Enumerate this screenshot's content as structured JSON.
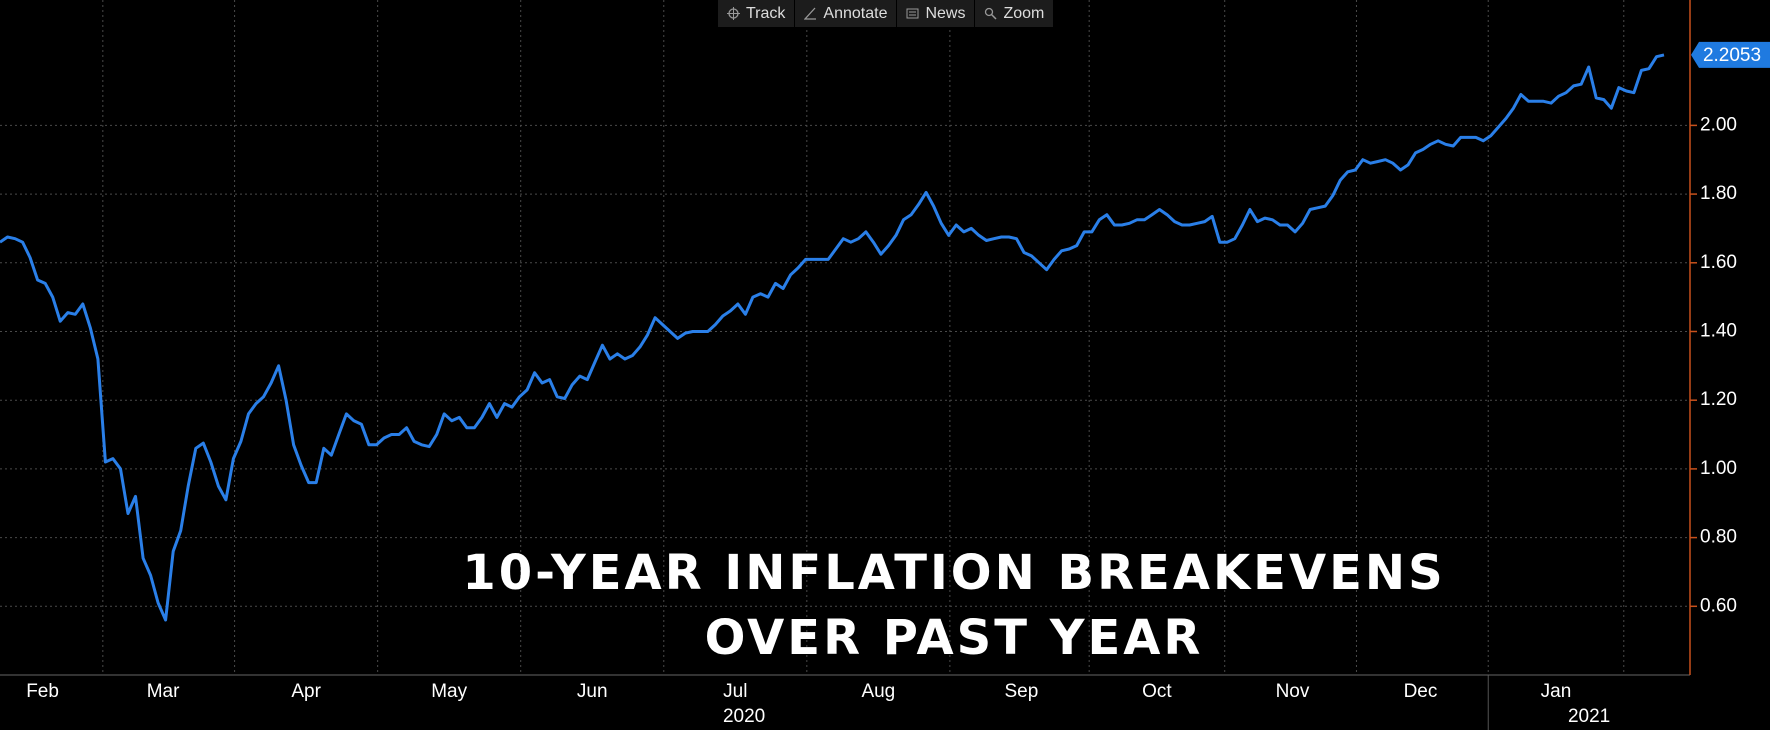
{
  "toolbar": [
    "Track",
    "Annotate",
    "News",
    "Zoom"
  ],
  "chart_data": {
    "type": "line",
    "title": [
      "10-YEAR INFLATION BREAKEVENS",
      "OVER PAST YEAR"
    ],
    "color": "#2a7fe8",
    "categories": [
      null,
      null,
      null,
      "Feb",
      null,
      null,
      null,
      null,
      null,
      null,
      null,
      null,
      null,
      null,
      null,
      null,
      null,
      null,
      null,
      "Mar",
      null,
      null,
      null,
      null,
      null,
      null,
      null,
      null,
      null,
      null,
      null,
      null,
      null,
      null,
      null,
      null,
      null,
      null,
      "Apr",
      null,
      null,
      null,
      null,
      null,
      null,
      null,
      null,
      null,
      null,
      null,
      null,
      null,
      null,
      null,
      null,
      null,
      null,
      "May",
      null,
      null,
      null,
      null,
      null,
      null,
      null,
      null,
      null,
      null,
      null,
      null,
      null,
      null,
      null,
      null,
      null,
      null,
      "Jun",
      null,
      null,
      null,
      null,
      null,
      null,
      null,
      null,
      null,
      null,
      null,
      null,
      null,
      null,
      null,
      null,
      null,
      null,
      "Jul",
      null,
      null,
      null,
      null,
      null,
      null,
      null,
      null,
      null,
      null,
      null,
      null,
      null,
      null,
      null,
      null,
      null,
      null,
      "Aug",
      null,
      null,
      null,
      null,
      null,
      null,
      null,
      null,
      null,
      null,
      null,
      null,
      null,
      null,
      null,
      null,
      null,
      null,
      "Sep",
      null,
      null,
      null,
      null,
      null,
      null,
      null,
      null,
      null,
      null,
      null,
      null,
      null,
      null,
      null,
      null,
      null,
      "Oct",
      null,
      null,
      null,
      null,
      null,
      null,
      null,
      null,
      null,
      null,
      null,
      null,
      null,
      null,
      null,
      null,
      null,
      "Nov",
      null,
      null,
      null,
      null,
      null,
      null,
      null,
      null,
      null,
      null,
      null,
      null,
      null,
      null,
      null,
      null,
      "Dec",
      null,
      null,
      null,
      null,
      null,
      null,
      null,
      null,
      null,
      null,
      null,
      null,
      null,
      null,
      null,
      null,
      null,
      "Jan",
      null,
      null,
      null,
      null,
      null,
      null,
      null,
      null,
      null,
      null,
      null,
      null,
      null,
      null,
      null,
      null,
      null
    ],
    "values": [
      1.66,
      1.675,
      1.67,
      1.66,
      1.615,
      1.55,
      1.54,
      1.5,
      1.43,
      1.455,
      1.45,
      1.48,
      1.41,
      1.32,
      1.02,
      1.03,
      1.0,
      0.87,
      0.92,
      0.74,
      0.69,
      0.61,
      0.56,
      0.76,
      0.82,
      0.95,
      1.06,
      1.075,
      1.02,
      0.95,
      0.91,
      1.03,
      1.08,
      1.16,
      1.19,
      1.21,
      1.25,
      1.3,
      1.2,
      1.07,
      1.01,
      0.96,
      0.96,
      1.06,
      1.04,
      1.1,
      1.16,
      1.14,
      1.13,
      1.07,
      1.07,
      1.09,
      1.1,
      1.1,
      1.12,
      1.08,
      1.07,
      1.065,
      1.1,
      1.16,
      1.14,
      1.15,
      1.12,
      1.12,
      1.15,
      1.19,
      1.15,
      1.19,
      1.18,
      1.21,
      1.23,
      1.28,
      1.25,
      1.26,
      1.21,
      1.205,
      1.245,
      1.27,
      1.26,
      1.31,
      1.36,
      1.32,
      1.335,
      1.32,
      1.33,
      1.355,
      1.39,
      1.44,
      1.42,
      1.4,
      1.38,
      1.395,
      1.4,
      1.4,
      1.4,
      1.42,
      1.445,
      1.46,
      1.48,
      1.45,
      1.5,
      1.51,
      1.5,
      1.54,
      1.525,
      1.565,
      1.585,
      1.61,
      1.61,
      1.61,
      1.61,
      1.64,
      1.67,
      1.66,
      1.67,
      1.69,
      1.66,
      1.625,
      1.65,
      1.68,
      1.725,
      1.74,
      1.77,
      1.805,
      1.765,
      1.715,
      1.68,
      1.71,
      1.69,
      1.7,
      1.68,
      1.665,
      1.67,
      1.675,
      1.675,
      1.67,
      1.63,
      1.62,
      1.6,
      1.58,
      1.61,
      1.635,
      1.64,
      1.65,
      1.69,
      1.69,
      1.725,
      1.74,
      1.71,
      1.71,
      1.715,
      1.725,
      1.725,
      1.74,
      1.755,
      1.74,
      1.72,
      1.71,
      1.71,
      1.715,
      1.72,
      1.735,
      1.66,
      1.66,
      1.67,
      1.71,
      1.755,
      1.72,
      1.73,
      1.725,
      1.71,
      1.71,
      1.69,
      1.715,
      1.755,
      1.76,
      1.765,
      1.795,
      1.84,
      1.865,
      1.87,
      1.9,
      1.89,
      1.895,
      1.9,
      1.89,
      1.87,
      1.885,
      1.92,
      1.93,
      1.945,
      1.955,
      1.945,
      1.94,
      1.965,
      1.965,
      1.965,
      1.955,
      1.97,
      1.995,
      2.02,
      2.05,
      2.09,
      2.07,
      2.07,
      2.07,
      2.065,
      2.085,
      2.095,
      2.115,
      2.12,
      2.17,
      2.08,
      2.075,
      2.05,
      2.11,
      2.1,
      2.095,
      2.16,
      2.165,
      2.2,
      2.2053
    ],
    "years": [
      "2020",
      "2021"
    ],
    "ylim": [
      0.4,
      2.365
    ],
    "yticks": [
      {
        "value": 0.6,
        "label": "0.60"
      },
      {
        "value": 0.8,
        "label": "0.80"
      },
      {
        "value": 1.0,
        "label": "1.00"
      },
      {
        "value": 1.2,
        "label": "1.20"
      },
      {
        "value": 1.4,
        "label": "1.40"
      },
      {
        "value": 1.6,
        "label": "1.60"
      },
      {
        "value": 1.8,
        "label": "1.80"
      },
      {
        "value": 2.0,
        "label": "2.00"
      }
    ],
    "grid": true
  }
}
